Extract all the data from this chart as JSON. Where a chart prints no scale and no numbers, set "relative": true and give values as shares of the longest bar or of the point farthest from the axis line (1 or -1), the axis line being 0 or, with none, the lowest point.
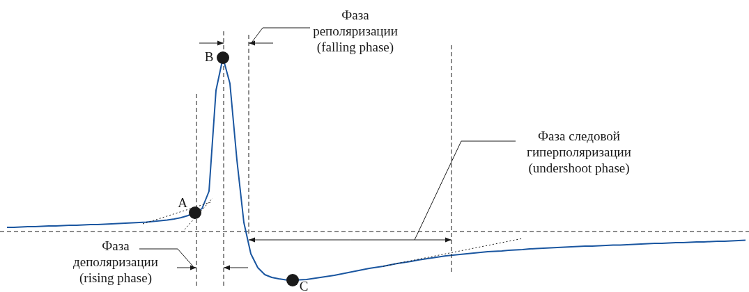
{
  "chart_data": {
    "type": "line",
    "relative": true,
    "legend": false,
    "categories": [
      null,
      null,
      null,
      null,
      null,
      null,
      null,
      null,
      null,
      null,
      null,
      null,
      null,
      null,
      null,
      null,
      null,
      null,
      null,
      null,
      null,
      null,
      null,
      null,
      null,
      null,
      null,
      null,
      null,
      null,
      null,
      null,
      null,
      null,
      null,
      null,
      null,
      null,
      null,
      null,
      null,
      null,
      null,
      null,
      null,
      null,
      null,
      null,
      null,
      null,
      null,
      null,
      null,
      null,
      null,
      null,
      null,
      null,
      null,
      null,
      null,
      null,
      null,
      null,
      null,
      null,
      null,
      null,
      null,
      null,
      null,
      null,
      null,
      null,
      null,
      null,
      null,
      null,
      null,
      null,
      null,
      null,
      null,
      null,
      null,
      null,
      null,
      null,
      null,
      null,
      null,
      null,
      null,
      null,
      null,
      null,
      null,
      null,
      null,
      null,
      null,
      null,
      null,
      null,
      null,
      null,
      null
    ],
    "series": [
      {
        "color": "#1a56a0",
        "values": [
          0.024,
          0.024,
          0.026,
          0.028,
          0.028,
          0.03,
          0.032,
          0.032,
          0.034,
          0.036,
          0.036,
          0.038,
          0.04,
          0.04,
          0.042,
          0.044,
          0.046,
          0.048,
          0.05,
          0.052,
          0.054,
          0.058,
          0.062,
          0.066,
          0.072,
          0.08,
          0.092,
          0.108,
          0.132,
          0.232,
          0.812,
          1,
          0.852,
          0.412,
          0.052,
          -0.128,
          -0.208,
          -0.248,
          -0.264,
          -0.272,
          -0.278,
          -0.28,
          -0.278,
          -0.276,
          -0.27,
          -0.264,
          -0.258,
          -0.252,
          -0.244,
          -0.236,
          -0.228,
          -0.22,
          -0.212,
          -0.206,
          -0.2,
          -0.192,
          -0.184,
          -0.178,
          -0.172,
          -0.164,
          -0.158,
          -0.152,
          -0.146,
          -0.14,
          -0.136,
          -0.132,
          -0.128,
          -0.124,
          -0.12,
          -0.116,
          -0.114,
          -0.112,
          -0.108,
          -0.106,
          -0.104,
          -0.1,
          -0.098,
          -0.096,
          -0.094,
          -0.092,
          -0.09,
          -0.088,
          -0.086,
          -0.084,
          -0.084,
          -0.082,
          -0.08,
          -0.078,
          -0.078,
          -0.076,
          -0.074,
          -0.072,
          -0.07,
          -0.068,
          -0.068,
          -0.066,
          -0.064,
          -0.064,
          -0.062,
          -0.06,
          -0.06,
          -0.058,
          -0.056,
          -0.056,
          -0.054,
          -0.052,
          -0.05
        ]
      }
    ],
    "annotations": [
      "Фаза реполяризации (falling phase)",
      "Фаза следовой гиперполяризации (undershoot phase)",
      "Фаза деполяризации (rising phase)",
      "A",
      "B",
      "C"
    ]
  }
}
